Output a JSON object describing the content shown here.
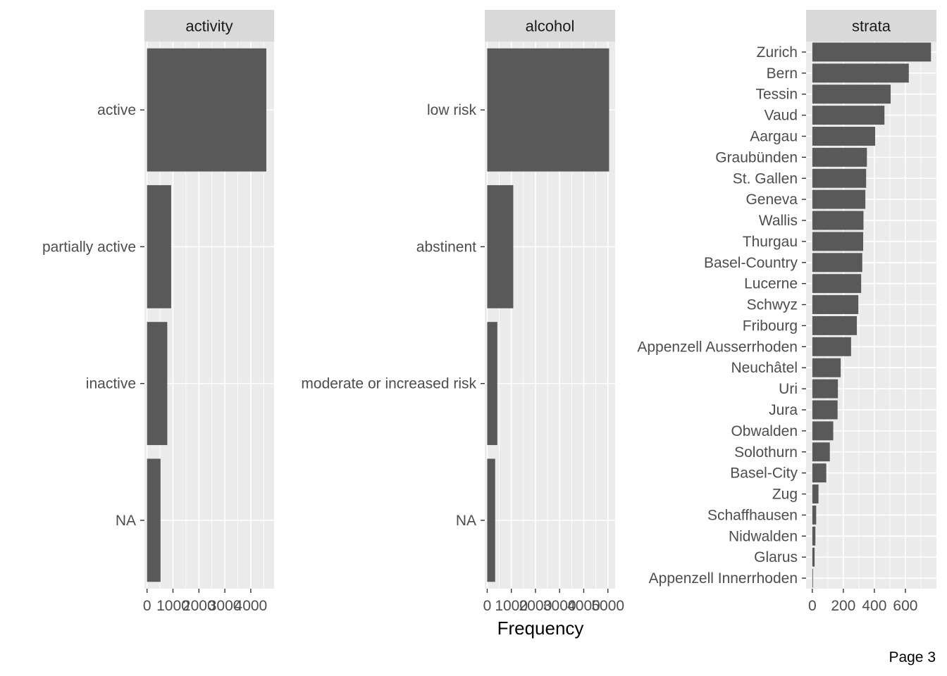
{
  "colors": {
    "panel_bg": "#ebebeb",
    "strip_bg": "#d9d9d9",
    "grid": "#ffffff",
    "bar": "#595959",
    "tick": "#333333"
  },
  "page_label": "Page 3",
  "x_axis_title": "Frequency",
  "chart_data": [
    {
      "type": "bar",
      "orientation": "horizontal",
      "facet": "activity",
      "categories": [
        "active",
        "partially active",
        "inactive",
        "NA"
      ],
      "values": [
        4600,
        930,
        780,
        520
      ],
      "xlim": [
        -100,
        4900
      ],
      "xticks": [
        0,
        1000,
        2000,
        3000,
        4000
      ],
      "xtick_labels": [
        "0",
        "1000",
        "2000",
        "3000",
        "4000"
      ],
      "grid": true
    },
    {
      "type": "bar",
      "orientation": "horizontal",
      "facet": "alcohol",
      "categories": [
        "low risk",
        "abstinent",
        "moderate or increased risk",
        "NA"
      ],
      "values": [
        5050,
        1080,
        420,
        330
      ],
      "xlim": [
        -100,
        5300
      ],
      "xticks": [
        0,
        1000,
        2000,
        3000,
        4000,
        5000
      ],
      "xtick_labels": [
        "0",
        "1000",
        "2000",
        "3000",
        "4000",
        "5000"
      ],
      "grid": true
    },
    {
      "type": "bar",
      "orientation": "horizontal",
      "facet": "strata",
      "categories": [
        "Zurich",
        "Bern",
        "Tessin",
        "Vaud",
        "Aargau",
        "Graubünden",
        "St. Gallen",
        "Geneva",
        "Wallis",
        "Thurgau",
        "Basel-Country",
        "Lucerne",
        "Schwyz",
        "Fribourg",
        "Appenzell Ausserrhoden",
        "Neuchâtel",
        "Uri",
        "Jura",
        "Obwalden",
        "Solothurn",
        "Basel-City",
        "Zug",
        "Schaffhausen",
        "Nidwalden",
        "Glarus",
        "Appenzell Innerrhoden"
      ],
      "values": [
        765,
        622,
        505,
        465,
        405,
        352,
        347,
        342,
        330,
        328,
        322,
        315,
        297,
        287,
        250,
        183,
        165,
        163,
        135,
        113,
        90,
        40,
        25,
        20,
        15,
        3
      ],
      "xlim": [
        -40,
        800
      ],
      "xticks": [
        0,
        200,
        400,
        600
      ],
      "xtick_labels": [
        "0",
        "200",
        "400",
        "600"
      ],
      "grid": true
    }
  ]
}
